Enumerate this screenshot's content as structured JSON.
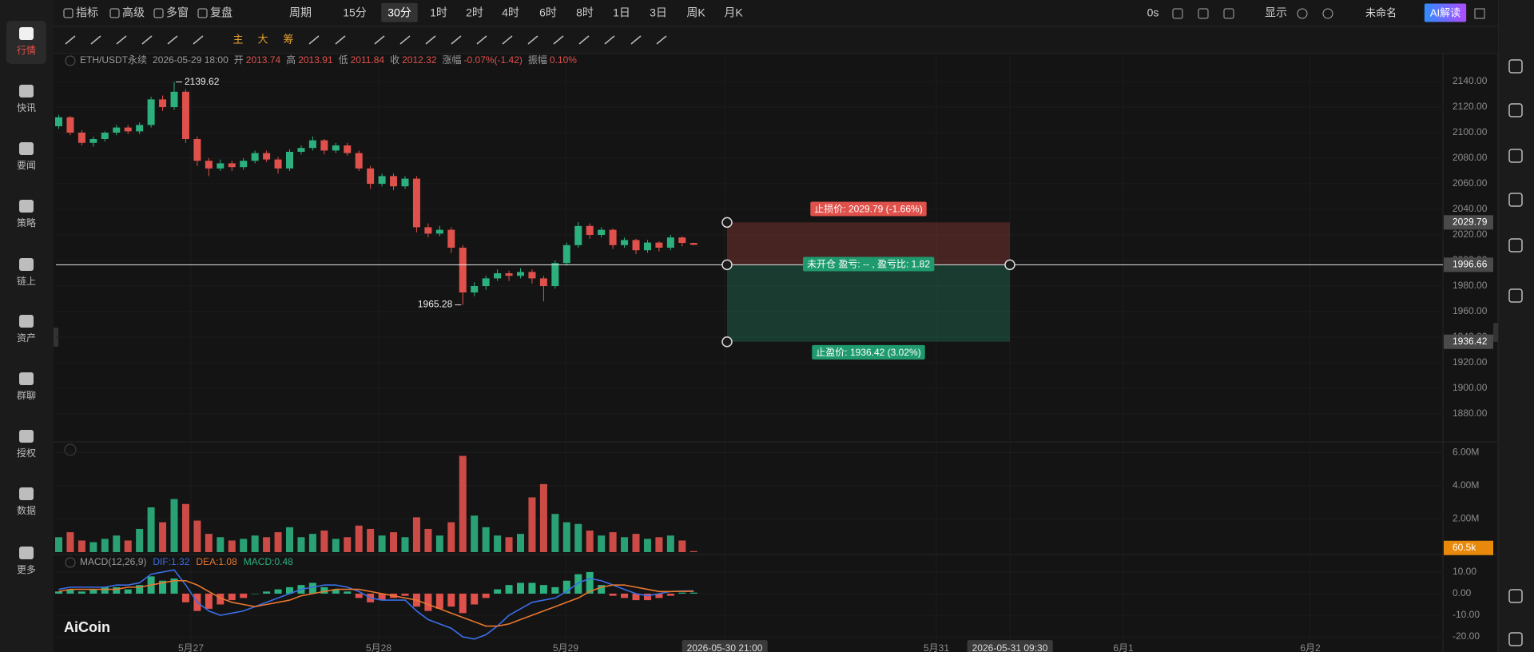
{
  "sidebar": {
    "items": [
      "行情",
      "快讯",
      "要闻",
      "策略",
      "链上",
      "资产",
      "群聊",
      "授权",
      "数据",
      "更多"
    ]
  },
  "toolbar": {
    "tools": [
      "指标",
      "高级",
      "多窗",
      "复盘"
    ],
    "period": "周期",
    "intervals": [
      "15分",
      "30分",
      "1时",
      "2时",
      "4时",
      "6时",
      "8时",
      "1日",
      "3日",
      "周K",
      "月K"
    ],
    "active_interval": "30分",
    "status": "0s",
    "display": "显示",
    "layout_name": "未命名",
    "ai": "AI解读"
  },
  "drawing_toolbar": {
    "tools": [
      "主",
      "大",
      "筹"
    ]
  },
  "logo": "AiCoin",
  "chart_data": [
    {
      "type": "candlestick",
      "symbol": "ETH/USDT永续",
      "time": "2026-05-29 18:00",
      "labels": [
        "开",
        "高",
        "低",
        "收",
        "涨幅",
        "振幅"
      ],
      "change": "-0.07%(-1.42)",
      "amplitude": "0.10%",
      "candles": [
        [
          2105,
          2114,
          2103,
          2112
        ],
        [
          2112,
          2113,
          2098,
          2100
        ],
        [
          2100,
          2102,
          2090,
          2092
        ],
        [
          2092,
          2097,
          2089,
          2095
        ],
        [
          2095,
          2101,
          2093,
          2100
        ],
        [
          2100,
          2106,
          2098,
          2104
        ],
        [
          2104,
          2106,
          2099,
          2101
        ],
        [
          2101,
          2108,
          2099,
          2106
        ],
        [
          2106,
          2128,
          2104,
          2126
        ],
        [
          2126,
          2129,
          2117,
          2120
        ],
        [
          2120,
          2139.62,
          2118,
          2132
        ],
        [
          2132,
          2134,
          2092,
          2095
        ],
        [
          2095,
          2097,
          2074,
          2078
        ],
        [
          2078,
          2080,
          2066,
          2072
        ],
        [
          2072,
          2079,
          2070,
          2076
        ],
        [
          2076,
          2078,
          2070,
          2073
        ],
        [
          2073,
          2080,
          2071,
          2078
        ],
        [
          2078,
          2086,
          2076,
          2084
        ],
        [
          2084,
          2086,
          2077,
          2079
        ],
        [
          2079,
          2081,
          2068,
          2072
        ],
        [
          2072,
          2087,
          2070,
          2085
        ],
        [
          2085,
          2090,
          2083,
          2088
        ],
        [
          2088,
          2097,
          2086,
          2094
        ],
        [
          2094,
          2095,
          2083,
          2086
        ],
        [
          2086,
          2092,
          2084,
          2090
        ],
        [
          2090,
          2092,
          2082,
          2084
        ],
        [
          2084,
          2086,
          2070,
          2072
        ],
        [
          2072,
          2074,
          2056,
          2060
        ],
        [
          2060,
          2068,
          2058,
          2066
        ],
        [
          2066,
          2068,
          2055,
          2058
        ],
        [
          2058,
          2066,
          2056,
          2064
        ],
        [
          2064,
          2066,
          2022,
          2026
        ],
        [
          2026,
          2029,
          2018,
          2021
        ],
        [
          2021,
          2027,
          2019,
          2024
        ],
        [
          2024,
          2026,
          2006,
          2010
        ],
        [
          2010,
          2012,
          1965.28,
          1975
        ],
        [
          1975,
          1983,
          1972,
          1980
        ],
        [
          1980,
          1988,
          1977,
          1986
        ],
        [
          1986,
          1993,
          1984,
          1990
        ],
        [
          1990,
          1992,
          1984,
          1988
        ],
        [
          1988,
          1994,
          1986,
          1991
        ],
        [
          1991,
          1993,
          1982,
          1986
        ],
        [
          1986,
          1988,
          1968,
          1980
        ],
        [
          1980,
          2000,
          1978,
          1998
        ],
        [
          1998,
          2014,
          1996,
          2012
        ],
        [
          2012,
          2030,
          2010,
          2027
        ],
        [
          2027,
          2029,
          2017,
          2020
        ],
        [
          2020,
          2026,
          2018,
          2024
        ],
        [
          2024,
          2025,
          2009,
          2012
        ],
        [
          2012,
          2018,
          2010,
          2016
        ],
        [
          2016,
          2017,
          2005,
          2008
        ],
        [
          2008,
          2016,
          2006,
          2014
        ],
        [
          2014,
          2015,
          2007,
          2010
        ],
        [
          2010,
          2020,
          2008,
          2018
        ],
        [
          2018,
          2019,
          2011,
          2013.74
        ],
        [
          2013.74,
          2013.91,
          2011.84,
          2012.32
        ]
      ],
      "up_color": "#2bb07e",
      "down_color": "#e0514b",
      "ylim": [
        1860,
        2160
      ],
      "yticks": [
        {
          "value": 2140,
          "label": "2140.00"
        },
        {
          "value": 2120,
          "label": "2120.00"
        },
        {
          "value": 2100,
          "label": "2100.00"
        },
        {
          "value": 2080,
          "label": "2080.00"
        },
        {
          "value": 2060,
          "label": "2060.00"
        },
        {
          "value": 2040,
          "label": "2040.00"
        },
        {
          "value": 2020,
          "label": "2020.00"
        },
        {
          "value": 2000,
          "label": "2000.00"
        },
        {
          "value": 1980,
          "label": "1980.00"
        },
        {
          "value": 1960,
          "label": "1960.00"
        },
        {
          "value": 1940,
          "label": "1940.00"
        },
        {
          "value": 1920,
          "label": "1920.00"
        },
        {
          "value": 1900,
          "label": "1900.00"
        },
        {
          "value": 1880,
          "label": "1880.00"
        }
      ],
      "position": {
        "stop_loss": 2029.79,
        "entry": 1996.66,
        "take_profit": 1936.42,
        "stop_label": "止损价: 2029.79 (-1.66%)",
        "status_label": "未开仓  盈亏: -- , 盈亏比: 1.82",
        "profit_label": "止盈价: 1936.42 (3.02%)"
      },
      "x_labels": [
        "5月27",
        "5月28",
        "5月29",
        "2026-05-30 21:00",
        "5月31",
        "2026-05-31 09:30",
        "6月1",
        "6月2"
      ]
    },
    {
      "type": "bar",
      "values": [
        900000,
        1200000,
        700000,
        600000,
        800000,
        1000000,
        700000,
        1400000,
        2700000,
        1800000,
        3200000,
        2900000,
        1900000,
        1100000,
        900000,
        700000,
        800000,
        1000000,
        900000,
        1200000,
        1500000,
        900000,
        1100000,
        1300000,
        800000,
        900000,
        1600000,
        1400000,
        1000000,
        1200000,
        900000,
        2100000,
        1400000,
        1000000,
        1800000,
        5800000,
        2200000,
        1500000,
        1000000,
        900000,
        1100000,
        3300000,
        4100000,
        2300000,
        1800000,
        1700000,
        1300000,
        1000000,
        1200000,
        900000,
        1100000,
        800000,
        900000,
        1000000,
        700000,
        60500
      ],
      "ylim": [
        0,
        6500000
      ],
      "yticks": [
        {
          "value": 6000000,
          "label": "6.00M"
        },
        {
          "value": 4000000,
          "label": "4.00M"
        },
        {
          "value": 2000000,
          "label": "2.00M"
        }
      ],
      "current": {
        "value": 60500,
        "label": "60.5k"
      }
    },
    {
      "type": "macd",
      "title": "MACD(12,26,9)",
      "legend": [
        "DIF:1.32",
        "DEA:1.08",
        "MACD:0.48"
      ],
      "legend_colors": [
        "#3a6ee8",
        "#e8772e",
        "#2bb07e"
      ],
      "histogram": [
        1,
        2,
        1,
        2,
        3,
        3,
        2,
        4,
        8,
        6,
        7,
        -4,
        -8,
        -7,
        -5,
        -3,
        -2,
        0,
        1,
        2,
        3,
        4,
        5,
        3,
        2,
        1,
        -2,
        -4,
        -3,
        -2,
        -1,
        -6,
        -8,
        -7,
        -6,
        -9,
        -5,
        -2,
        2,
        4,
        5,
        5,
        4,
        3,
        6,
        9,
        10,
        4,
        -1,
        -2,
        -3,
        -3,
        -2,
        -1,
        0.5,
        0.48
      ],
      "series": [
        {
          "color": "#3a6ee8",
          "values": [
            2,
            3,
            3,
            3,
            3,
            4,
            4,
            5,
            9,
            10,
            11,
            4,
            -4,
            -8,
            -10,
            -9,
            -8,
            -6,
            -4,
            -2,
            0,
            2,
            3,
            4,
            4,
            3,
            1,
            -2,
            -3,
            -3,
            -3,
            -8,
            -12,
            -14,
            -16,
            -20,
            -21,
            -19,
            -15,
            -10,
            -7,
            -4,
            -3,
            -2,
            1,
            5,
            7,
            6,
            4,
            2,
            0,
            -1,
            0,
            1,
            1.2,
            1.32
          ]
        },
        {
          "color": "#e8772e",
          "values": [
            1,
            2,
            2,
            2,
            2,
            2,
            3,
            3,
            4,
            5,
            6,
            6,
            4,
            1,
            -2,
            -4,
            -5,
            -6,
            -5,
            -4,
            -3,
            -1,
            0,
            1,
            2,
            2,
            2,
            1,
            0,
            -1,
            -2,
            -3,
            -5,
            -7,
            -9,
            -11,
            -13,
            -15,
            -15,
            -14,
            -12,
            -10,
            -8,
            -6,
            -4,
            -2,
            1,
            3,
            4,
            4,
            3,
            2,
            1,
            1,
            1.1,
            1.08
          ]
        }
      ],
      "ylim": [
        -27,
        17
      ],
      "yticks": [
        {
          "value": 10,
          "label": "10.00"
        },
        {
          "value": 0,
          "label": "0.00"
        },
        {
          "value": -10,
          "label": "-10.00"
        },
        {
          "value": -20,
          "label": "-20.00"
        }
      ]
    }
  ]
}
